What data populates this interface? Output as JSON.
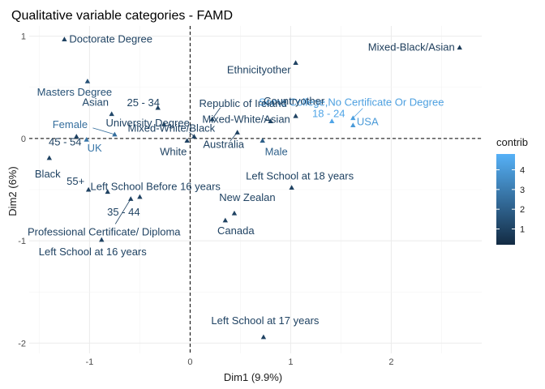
{
  "chart_data": {
    "type": "scatter",
    "title": "Qualitative variable categories - FAMD",
    "xlabel": "Dim1 (9.9%)",
    "ylabel": "Dim2 (6%)",
    "xlim": [
      -1.6,
      2.9
    ],
    "ylim": [
      -2.1,
      1.1
    ],
    "x_ticks": [
      -1,
      0,
      1,
      2
    ],
    "y_ticks": [
      -2,
      -1,
      0,
      1
    ],
    "grid": true,
    "reference_lines": {
      "x": 0,
      "y": 0,
      "style": "dashed"
    },
    "legend": {
      "title": "contrib",
      "position": "right",
      "ticks": [
        1,
        2,
        3,
        4
      ],
      "range": [
        0.2,
        4.8
      ],
      "color_low": "#132B43",
      "color_high": "#56B1F7"
    },
    "points": [
      {
        "label": "Doctorate Degree",
        "x": -1.25,
        "y": 0.97,
        "contrib": 1.0
      },
      {
        "label": "Mixed-Black/Asian",
        "x": 2.68,
        "y": 0.89,
        "contrib": 0.8
      },
      {
        "label": "Ethnicityother",
        "x": 1.05,
        "y": 0.74,
        "contrib": 1.0
      },
      {
        "label": "Masters Degree",
        "x": -1.02,
        "y": 0.56,
        "contrib": 1.5
      },
      {
        "label": "Some College,No Certificate Or Degree",
        "x": 1.62,
        "y": 0.2,
        "contrib": 4.2
      },
      {
        "label": "25 - 34",
        "x": -0.32,
        "y": 0.3,
        "contrib": 1.0
      },
      {
        "label": "Republic of Ireland",
        "x": 0.22,
        "y": 0.19,
        "contrib": 1.0
      },
      {
        "label": "Asian",
        "x": -0.78,
        "y": 0.24,
        "contrib": 1.2
      },
      {
        "label": "Countryother",
        "x": 1.05,
        "y": 0.22,
        "contrib": 1.0
      },
      {
        "label": "University Degree",
        "x": -0.26,
        "y": 0.14,
        "contrib": 1.0
      },
      {
        "label": "Female",
        "x": -0.75,
        "y": 0.04,
        "contrib": 2.5
      },
      {
        "label": "Mixed-White/Black",
        "x": 0.04,
        "y": 0.02,
        "contrib": 1.0
      },
      {
        "label": "Mixed-White/Asian",
        "x": 0.8,
        "y": 0.17,
        "contrib": 1.0
      },
      {
        "label": "18 - 24",
        "x": 1.41,
        "y": 0.17,
        "contrib": 4.4
      },
      {
        "label": "USA",
        "x": 1.62,
        "y": 0.13,
        "contrib": 4.0
      },
      {
        "label": "Australia",
        "x": 0.47,
        "y": 0.06,
        "contrib": 1.0
      },
      {
        "label": "45 - 54",
        "x": -1.13,
        "y": 0.02,
        "contrib": 1.0
      },
      {
        "label": "UK",
        "x": -1.03,
        "y": -0.01,
        "contrib": 2.8
      },
      {
        "label": "White",
        "x": -0.03,
        "y": -0.02,
        "contrib": 1.0
      },
      {
        "label": "Male",
        "x": 0.72,
        "y": -0.02,
        "contrib": 2.0
      },
      {
        "label": "Black",
        "x": -1.4,
        "y": -0.19,
        "contrib": 1.0
      },
      {
        "label": "Left School at 18 years",
        "x": 1.01,
        "y": -0.48,
        "contrib": 1.0
      },
      {
        "label": "55+",
        "x": -1.01,
        "y": -0.5,
        "contrib": 1.0
      },
      {
        "label": "Left School Before 16 years",
        "x": -0.82,
        "y": -0.52,
        "contrib": 1.0
      },
      {
        "label": "35 - 44",
        "x": -0.5,
        "y": -0.57,
        "contrib": 1.0
      },
      {
        "label": "Professional Certificate/ Diploma",
        "x": -0.59,
        "y": -0.59,
        "contrib": 1.0
      },
      {
        "label": "New Zealan",
        "x": 0.44,
        "y": -0.73,
        "contrib": 1.0
      },
      {
        "label": "Canada",
        "x": 0.35,
        "y": -0.8,
        "contrib": 1.0
      },
      {
        "label": "Left School at 16 years",
        "x": -0.88,
        "y": -0.99,
        "contrib": 1.0
      },
      {
        "label": "Left School at 17 years",
        "x": 0.73,
        "y": -1.94,
        "contrib": 1.0
      }
    ]
  }
}
